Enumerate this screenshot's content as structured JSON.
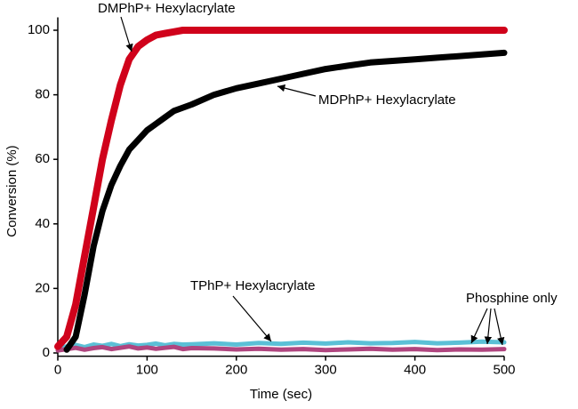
{
  "chart_data": {
    "type": "line",
    "x_label": "Time (sec)",
    "y_label": "Conversion (%)",
    "xlim": [
      0,
      500
    ],
    "ylim": [
      -1,
      104
    ],
    "xticks": [
      0,
      100,
      200,
      300,
      400,
      500
    ],
    "yticks": [
      0,
      20,
      40,
      60,
      80,
      100
    ],
    "x": [
      0,
      10,
      20,
      30,
      40,
      50,
      60,
      70,
      80,
      90,
      100,
      110,
      120,
      130,
      140,
      150,
      175,
      200,
      225,
      250,
      275,
      300,
      325,
      350,
      375,
      400,
      425,
      450,
      475,
      500
    ],
    "series": [
      {
        "color": "#d0021b",
        "values": [
          2,
          5,
          15,
          30,
          45,
          60,
          72,
          83,
          91,
          95,
          97,
          98.5,
          99,
          99.5,
          100,
          100,
          100,
          100,
          100,
          100,
          100,
          100,
          100,
          100,
          100,
          100,
          100,
          100,
          100,
          100
        ]
      },
      {
        "color": "#000000",
        "values": [
          null,
          1,
          5,
          18,
          33,
          44,
          52,
          58,
          63,
          66,
          69,
          71,
          73,
          75,
          76,
          77,
          80,
          82,
          83.5,
          85,
          86.5,
          88,
          89,
          90,
          90.5,
          91,
          91.5,
          92,
          92.5,
          93
        ]
      },
      {
        "color": "#5bc0d6",
        "values": [
          1.5,
          2,
          2.5,
          1.8,
          2.6,
          2.2,
          2.8,
          2.1,
          2.7,
          2.3,
          2.5,
          2.9,
          2.4,
          2.8,
          2.6,
          2.7,
          3,
          2.6,
          3.1,
          2.8,
          3.2,
          2.9,
          3.3,
          3,
          3.1,
          3.4,
          3,
          3.2,
          3.5,
          3.3
        ]
      },
      {
        "color": "#b0457f",
        "values": [
          0.8,
          1.2,
          1.6,
          1,
          1.5,
          1.8,
          1.2,
          1.6,
          2,
          1.4,
          1.7,
          1.3,
          1.6,
          1.9,
          1.2,
          1.5,
          1.4,
          1.1,
          1.3,
          1,
          1.2,
          0.9,
          1.1,
          1.3,
          1,
          1.2,
          0.9,
          1.1,
          1,
          1.2
        ]
      }
    ],
    "annotations": [
      {
        "text": "DMPhP+ Hexylacrylate"
      },
      {
        "text": "MDPhP+ Hexylacrylate"
      },
      {
        "text": "TPhP+ Hexylacrylate"
      },
      {
        "text": "Phosphine only"
      }
    ]
  }
}
